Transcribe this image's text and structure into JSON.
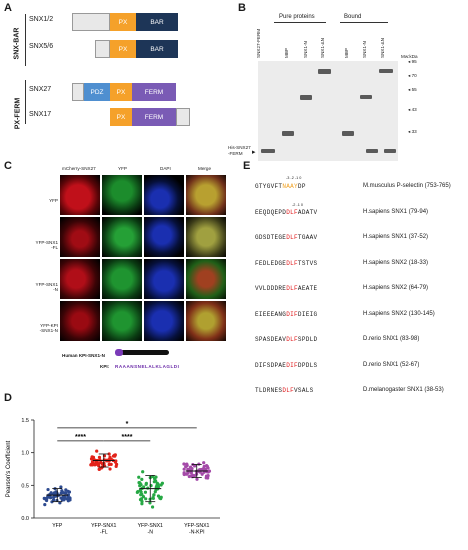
{
  "panelA": {
    "letter": "A",
    "group1": "SNX-BAR",
    "group2": "PX-FERM",
    "rows": [
      {
        "name": "SNX1/2",
        "domains": [
          "PX",
          "BAR"
        ]
      },
      {
        "name": "SNX5/6",
        "domains": [
          "PX",
          "BAR"
        ]
      },
      {
        "name": "SNX27",
        "domains": [
          "PDZ",
          "PX",
          "FERM"
        ]
      },
      {
        "name": "SNX17",
        "domains": [
          "PX",
          "FERM"
        ]
      }
    ],
    "colors": {
      "px": "#f5a12a",
      "bar": "#1d3557",
      "pdz": "#4f8fd0",
      "ferm": "#7a5bb5",
      "linker": "#e8e8e8"
    }
  },
  "panelB": {
    "letter": "B",
    "group1": "Pure proteins",
    "group2": "Bound",
    "lanes": [
      "SNX27-FERM",
      "MBP",
      "SNX1-N",
      "SNX1-ΔN",
      "MBP",
      "SNX1-N",
      "SNX1-ΔN"
    ],
    "mw_title": "Mw:kDa",
    "mw": [
      "95",
      "70",
      "55",
      "43",
      "33"
    ],
    "left_label": "His-SNX27\n-FERM"
  },
  "panelC": {
    "letter": "C",
    "columns": [
      "mCherry-SNX27",
      "YFP",
      "DAPI",
      "Merge"
    ],
    "rows": [
      "YFP",
      "YFP-SNX1\n-FL",
      "YFP-SNX1\n-N",
      "YFP-KPI\n-SNX1-N"
    ],
    "construct_title": "Human KPI-SNX1-N",
    "kpi_label": "KPI:",
    "kpi_seq": "RAAANSNELALKLAGLDI"
  },
  "panelD": {
    "letter": "D",
    "ylabel": "Pearson's Coefficient",
    "categories": [
      "YFP",
      "YFP-SNX1\n-FL",
      "YFP-SNX1\n-N",
      "YFP-SNX1\n-N-KPI"
    ],
    "ticks": [
      "1.5",
      "1.0",
      "0.5",
      "0.0"
    ],
    "sig": [
      "****",
      "****",
      "*"
    ],
    "colors": [
      "#2d4a8f",
      "#e2231a",
      "#26a844",
      "#a44aa8"
    ]
  },
  "chart_data": {
    "type": "scatter",
    "categories": [
      "YFP",
      "YFP-SNX1-FL",
      "YFP-SNX1-N",
      "YFP-SNX1-N-KPI"
    ],
    "series": [
      {
        "name": "YFP",
        "mean": 0.35,
        "sd": 0.1
      },
      {
        "name": "YFP-SNX1-FL",
        "mean": 0.88,
        "sd": 0.1
      },
      {
        "name": "YFP-SNX1-N",
        "mean": 0.45,
        "sd": 0.2
      },
      {
        "name": "YFP-SNX1-N-KPI",
        "mean": 0.72,
        "sd": 0.1
      }
    ],
    "ylabel": "Pearson's Coefficient",
    "ylim": [
      0,
      1.5
    ]
  },
  "panelE": {
    "letter": "E",
    "pos_header1": "-3 -2 -1 0",
    "pos_header2": "-2 -1 0",
    "rows": [
      {
        "pre": "GTYGVFT",
        "hl": "NAAY",
        "post": "DP",
        "hlcolor": "orange",
        "label": "M.musculus P-selectin (753-765)"
      },
      {
        "pre": "EEQDQEPD",
        "hl": "DLF",
        "post": "ADATV",
        "hlcolor": "red",
        "label": "H.sapiens SNX1 (79-94)"
      },
      {
        "pre": "GDSDTEGE",
        "hl": "DLF",
        "post": "TGAAV",
        "hlcolor": "red",
        "label": "H.sapiens SNX1 (37-52)"
      },
      {
        "pre": "FEDLEDGE",
        "hl": "DLF",
        "post": "TSTVS",
        "hlcolor": "red",
        "label": "H.sapiens SNX2 (18-33)"
      },
      {
        "pre": "VVLDDDRE",
        "hl": "DLF",
        "post": "AEATE",
        "hlcolor": "red",
        "label": "H.sapiens SNX2 (64-79)"
      },
      {
        "pre": "EIEEEANG",
        "hl": "DIF",
        "post": "DIEIG",
        "hlcolor": "red",
        "label": "H.sapiens SNX2 (130-145)"
      },
      {
        "pre": "SPASDEAV",
        "hl": "DLF",
        "post": "SPDLD",
        "hlcolor": "red",
        "label": "D.rerio SNX1 (83-98)"
      },
      {
        "pre": "DIFSDPAE",
        "hl": "DIF",
        "post": "DPDLS",
        "hlcolor": "red",
        "label": "D.rerio SNX1 (52-67)"
      },
      {
        "pre": "TLDRNES",
        "hl": "DLF",
        "post": "VSALS",
        "hlcolor": "red",
        "label": "D.melanogaster SNX1 (38-53)"
      }
    ]
  }
}
